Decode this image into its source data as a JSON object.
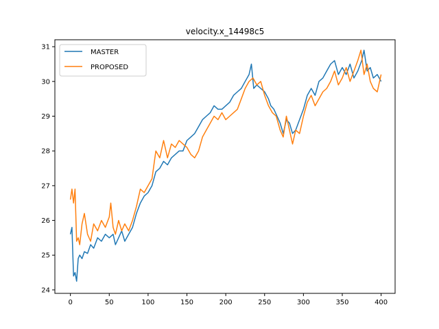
{
  "chart_data": {
    "type": "line",
    "title": "velocity.x_14498c5",
    "xlabel": "",
    "ylabel": "",
    "xlim": [
      -20,
      418
    ],
    "ylim": [
      23.9,
      31.2
    ],
    "x_ticks": [
      0,
      50,
      100,
      150,
      200,
      250,
      300,
      350,
      400
    ],
    "y_ticks": [
      24,
      25,
      26,
      27,
      28,
      29,
      30,
      31
    ],
    "grid": false,
    "legend": "top-left",
    "series": [
      {
        "name": "MASTER",
        "color": "#1f77b4",
        "points": [
          [
            0,
            25.6
          ],
          [
            2,
            25.8
          ],
          [
            4,
            24.4
          ],
          [
            6,
            24.5
          ],
          [
            8,
            24.25
          ],
          [
            10,
            24.9
          ],
          [
            12,
            25.0
          ],
          [
            15,
            24.9
          ],
          [
            18,
            25.1
          ],
          [
            22,
            25.05
          ],
          [
            26,
            25.3
          ],
          [
            30,
            25.2
          ],
          [
            35,
            25.5
          ],
          [
            40,
            25.4
          ],
          [
            45,
            25.6
          ],
          [
            50,
            25.5
          ],
          [
            55,
            25.6
          ],
          [
            58,
            25.3
          ],
          [
            62,
            25.5
          ],
          [
            66,
            25.7
          ],
          [
            70,
            25.4
          ],
          [
            75,
            25.6
          ],
          [
            80,
            25.8
          ],
          [
            85,
            26.2
          ],
          [
            90,
            26.5
          ],
          [
            95,
            26.7
          ],
          [
            100,
            26.8
          ],
          [
            105,
            27.0
          ],
          [
            110,
            27.4
          ],
          [
            115,
            27.5
          ],
          [
            120,
            27.7
          ],
          [
            125,
            27.6
          ],
          [
            130,
            27.8
          ],
          [
            135,
            27.9
          ],
          [
            140,
            28.0
          ],
          [
            145,
            28.0
          ],
          [
            150,
            28.3
          ],
          [
            155,
            28.4
          ],
          [
            160,
            28.5
          ],
          [
            165,
            28.7
          ],
          [
            170,
            28.9
          ],
          [
            175,
            29.0
          ],
          [
            180,
            29.1
          ],
          [
            185,
            29.3
          ],
          [
            190,
            29.2
          ],
          [
            195,
            29.2
          ],
          [
            200,
            29.3
          ],
          [
            205,
            29.4
          ],
          [
            210,
            29.6
          ],
          [
            215,
            29.7
          ],
          [
            220,
            29.8
          ],
          [
            225,
            30.0
          ],
          [
            230,
            30.2
          ],
          [
            233,
            30.5
          ],
          [
            236,
            29.8
          ],
          [
            240,
            29.9
          ],
          [
            245,
            29.8
          ],
          [
            250,
            29.7
          ],
          [
            255,
            29.5
          ],
          [
            258,
            29.3
          ],
          [
            262,
            29.2
          ],
          [
            266,
            29.0
          ],
          [
            270,
            28.8
          ],
          [
            274,
            28.5
          ],
          [
            278,
            28.9
          ],
          [
            282,
            28.8
          ],
          [
            286,
            28.5
          ],
          [
            290,
            28.6
          ],
          [
            295,
            28.9
          ],
          [
            300,
            29.2
          ],
          [
            305,
            29.6
          ],
          [
            310,
            29.8
          ],
          [
            315,
            29.6
          ],
          [
            320,
            30.0
          ],
          [
            325,
            30.1
          ],
          [
            330,
            30.3
          ],
          [
            335,
            30.5
          ],
          [
            340,
            30.6
          ],
          [
            345,
            30.2
          ],
          [
            350,
            30.4
          ],
          [
            355,
            30.2
          ],
          [
            360,
            30.5
          ],
          [
            365,
            30.1
          ],
          [
            370,
            30.3
          ],
          [
            375,
            30.6
          ],
          [
            378,
            30.9
          ],
          [
            382,
            30.3
          ],
          [
            386,
            30.4
          ],
          [
            390,
            30.1
          ],
          [
            395,
            30.2
          ],
          [
            400,
            30.0
          ]
        ]
      },
      {
        "name": "PROPOSED",
        "color": "#ff7f0e",
        "points": [
          [
            0,
            26.6
          ],
          [
            2,
            26.9
          ],
          [
            4,
            26.5
          ],
          [
            6,
            26.9
          ],
          [
            8,
            25.4
          ],
          [
            10,
            25.5
          ],
          [
            12,
            25.3
          ],
          [
            15,
            25.9
          ],
          [
            18,
            26.2
          ],
          [
            22,
            25.6
          ],
          [
            26,
            25.4
          ],
          [
            30,
            25.9
          ],
          [
            35,
            25.7
          ],
          [
            40,
            26.0
          ],
          [
            45,
            25.8
          ],
          [
            50,
            26.1
          ],
          [
            52,
            26.5
          ],
          [
            55,
            25.8
          ],
          [
            58,
            25.6
          ],
          [
            62,
            26.0
          ],
          [
            66,
            25.7
          ],
          [
            70,
            25.9
          ],
          [
            75,
            25.7
          ],
          [
            80,
            26.0
          ],
          [
            85,
            26.4
          ],
          [
            90,
            26.9
          ],
          [
            95,
            26.8
          ],
          [
            100,
            27.0
          ],
          [
            105,
            27.2
          ],
          [
            110,
            28.0
          ],
          [
            115,
            27.8
          ],
          [
            120,
            28.3
          ],
          [
            125,
            27.8
          ],
          [
            130,
            28.2
          ],
          [
            135,
            28.1
          ],
          [
            140,
            28.3
          ],
          [
            145,
            28.2
          ],
          [
            150,
            28.1
          ],
          [
            155,
            27.9
          ],
          [
            160,
            27.8
          ],
          [
            165,
            28.0
          ],
          [
            170,
            28.4
          ],
          [
            175,
            28.6
          ],
          [
            180,
            28.8
          ],
          [
            185,
            29.0
          ],
          [
            190,
            28.9
          ],
          [
            195,
            29.1
          ],
          [
            200,
            28.9
          ],
          [
            205,
            29.0
          ],
          [
            210,
            29.1
          ],
          [
            215,
            29.2
          ],
          [
            220,
            29.5
          ],
          [
            225,
            29.8
          ],
          [
            230,
            30.0
          ],
          [
            235,
            30.1
          ],
          [
            240,
            29.9
          ],
          [
            245,
            30.0
          ],
          [
            250,
            29.6
          ],
          [
            255,
            29.3
          ],
          [
            260,
            29.1
          ],
          [
            265,
            29.0
          ],
          [
            270,
            28.6
          ],
          [
            274,
            28.4
          ],
          [
            278,
            29.0
          ],
          [
            282,
            28.6
          ],
          [
            286,
            28.2
          ],
          [
            290,
            28.6
          ],
          [
            295,
            28.5
          ],
          [
            300,
            29.0
          ],
          [
            305,
            29.4
          ],
          [
            310,
            29.6
          ],
          [
            315,
            29.3
          ],
          [
            320,
            29.5
          ],
          [
            325,
            29.7
          ],
          [
            330,
            29.8
          ],
          [
            335,
            30.0
          ],
          [
            340,
            30.3
          ],
          [
            345,
            29.9
          ],
          [
            350,
            30.1
          ],
          [
            355,
            30.4
          ],
          [
            360,
            30.0
          ],
          [
            365,
            30.3
          ],
          [
            370,
            30.6
          ],
          [
            374,
            30.9
          ],
          [
            378,
            30.2
          ],
          [
            382,
            30.5
          ],
          [
            386,
            30.0
          ],
          [
            390,
            29.8
          ],
          [
            395,
            29.7
          ],
          [
            400,
            30.2
          ]
        ]
      }
    ]
  }
}
